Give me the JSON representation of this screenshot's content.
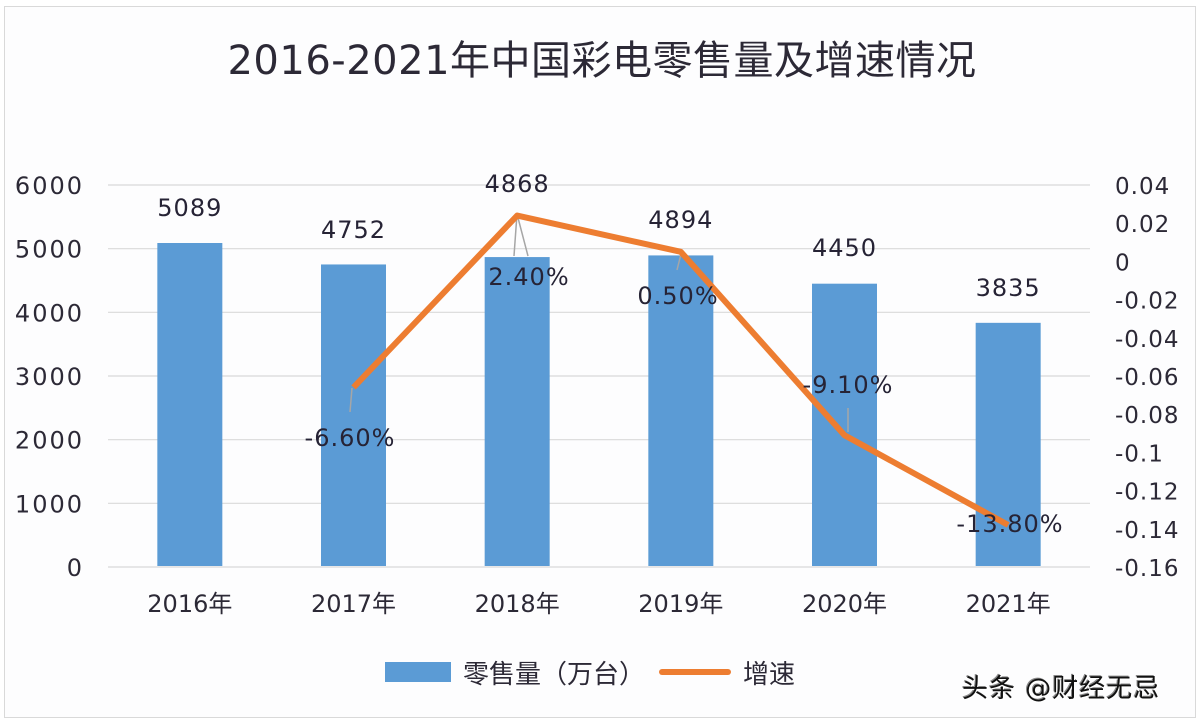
{
  "chart_data": {
    "type": "bar+line",
    "title": "2016-2021年中国彩电零售量及增速情况",
    "categories": [
      "2016年",
      "2017年",
      "2018年",
      "2019年",
      "2020年",
      "2021年"
    ],
    "series": [
      {
        "name": "零售量（万台）",
        "type": "bar",
        "axis": "left",
        "color": "#5b9bd5",
        "values": [
          5089,
          4752,
          4868,
          4894,
          4450,
          3835
        ],
        "labels": [
          "5089",
          "4752",
          "4868",
          "4894",
          "4450",
          "3835"
        ]
      },
      {
        "name": "增速",
        "type": "line",
        "axis": "right",
        "color": "#ed7d31",
        "values": [
          null,
          -0.066,
          0.024,
          0.005,
          -0.091,
          -0.138
        ],
        "labels": [
          "",
          "-6.60%",
          "2.40%",
          "0.50%",
          "-9.10%",
          "-13.80%"
        ]
      }
    ],
    "left_axis": {
      "ylim": [
        0,
        6000
      ],
      "ticks": [
        "6000",
        "5000",
        "4000",
        "3000",
        "2000",
        "1000",
        "0"
      ]
    },
    "right_axis": {
      "ylim": [
        -0.16,
        0.04
      ],
      "ticks": [
        "0.04",
        "0.02",
        "0",
        "-0.02",
        "-0.04",
        "-0.06",
        "-0.08",
        "-0.1",
        "-0.12",
        "-0.14",
        "-0.16"
      ]
    },
    "xlabel": "",
    "ylabel": "",
    "grid": true,
    "legend_position": "bottom"
  },
  "legend": {
    "bar_label": "零售量（万台）",
    "line_label": "增速"
  },
  "watermark": "头条 @财经无忌"
}
